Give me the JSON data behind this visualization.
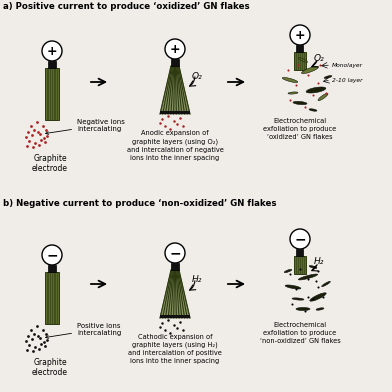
{
  "bg_color": "#f0ede8",
  "graphite_color": "#5a6a2a",
  "graphite_dark": "#2d3a10",
  "graphite_mid": "#4a5520",
  "connector_color": "#111111",
  "ion_color_neg": "#aa2222",
  "ion_color_pos": "#111111",
  "flake_color_light": "#6a7a30",
  "flake_color_dark": "#1a2008",
  "title_a": "a) Positive current to produce ‘oxidized’ GN flakes",
  "title_b": "b) Negative current to produce ‘non-oxidized’ GN flakes",
  "label_graphite": "Graphite\nelectrode",
  "label_neg_ions": "Negative ions\nintercalating",
  "label_pos_ions": "Positive ions\nintercalating",
  "label_anodic": "Anodic expansion of\ngraphite layers (using O₂)\nand intercalation of negative\nions into the inner spacing",
  "label_cathodic": "Cathodic expansion of\ngraphite layers (using H₂)\nand intercalation of positive\nions into the inner spacing",
  "label_oxid_exfol": "Electrochemical\nexfoliation to produce\n‘oxidized’ GN flakes",
  "label_nonoxid_exfol": "Electrochemical\nexfoliation to produce\n‘non-oxidized’ GN flakes",
  "label_monolayer": "Monolayer",
  "label_2_10": "2-10 layer",
  "label_o2": "O₂",
  "label_h2": "H₂"
}
